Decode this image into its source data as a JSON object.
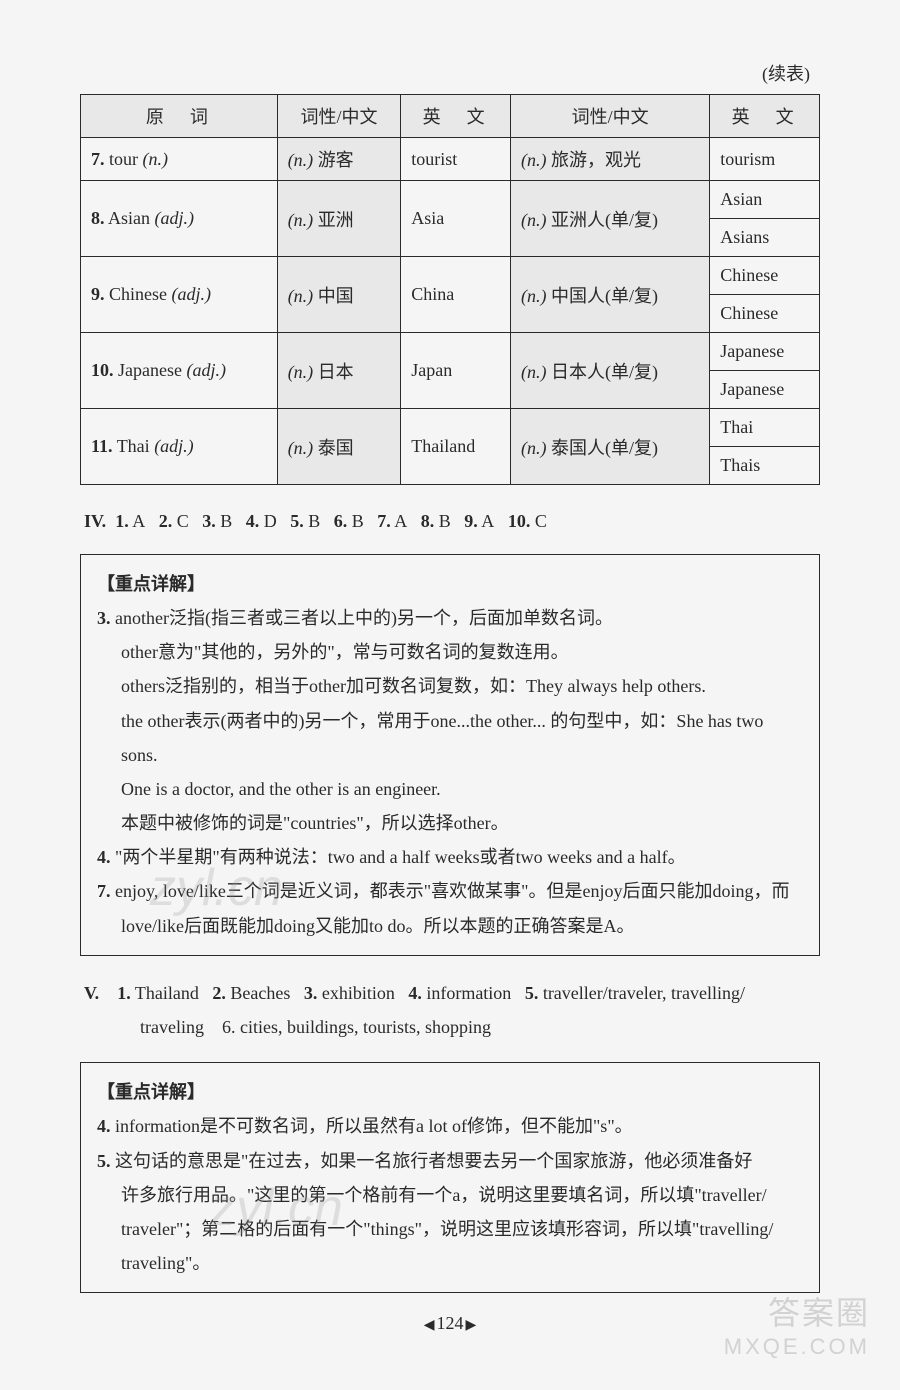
{
  "cont_label": "(续表)",
  "table": {
    "headers": [
      "原　词",
      "词性/中文",
      "英　文",
      "词性/中文",
      "英　文"
    ],
    "rows": [
      {
        "c1_num": "7.",
        "c1_word": "tour",
        "c1_pos": "(n.)",
        "c2": "(n.) 游客",
        "c3": "tourist",
        "c4": "(n.) 旅游，观光",
        "c5": [
          "tourism"
        ]
      },
      {
        "c1_num": "8.",
        "c1_word": "Asian",
        "c1_pos": "(adj.)",
        "c2": "(n.) 亚洲",
        "c3": "Asia",
        "c4": "(n.) 亚洲人(单/复)",
        "c5": [
          "Asian",
          "Asians"
        ]
      },
      {
        "c1_num": "9.",
        "c1_word": "Chinese",
        "c1_pos": "(adj.)",
        "c2": "(n.) 中国",
        "c3": "China",
        "c4": "(n.) 中国人(单/复)",
        "c5": [
          "Chinese",
          "Chinese"
        ]
      },
      {
        "c1_num": "10.",
        "c1_word": "Japanese",
        "c1_pos": "(adj.)",
        "c2": "(n.) 日本",
        "c3": "Japan",
        "c4": "(n.) 日本人(单/复)",
        "c5": [
          "Japanese",
          "Japanese"
        ]
      },
      {
        "c1_num": "11.",
        "c1_word": "Thai",
        "c1_pos": "(adj.)",
        "c2": "(n.) 泰国",
        "c3": "Thailand",
        "c4": "(n.) 泰国人(单/复)",
        "c5": [
          "Thai",
          "Thais"
        ]
      }
    ]
  },
  "section_iv": {
    "label": "IV.",
    "answers": [
      {
        "n": "1.",
        "a": "A"
      },
      {
        "n": "2.",
        "a": "C"
      },
      {
        "n": "3.",
        "a": "B"
      },
      {
        "n": "4.",
        "a": "D"
      },
      {
        "n": "5.",
        "a": "B"
      },
      {
        "n": "6.",
        "a": "B"
      },
      {
        "n": "7.",
        "a": "A"
      },
      {
        "n": "8.",
        "a": "B"
      },
      {
        "n": "9.",
        "a": "A"
      },
      {
        "n": "10.",
        "a": "C"
      }
    ]
  },
  "explain1": {
    "title": "【重点详解】",
    "items": {
      "n3": "3.",
      "l3a": "another泛指(指三者或三者以上中的)另一个，后面加单数名词。",
      "l3b": "other意为\"其他的，另外的\"，常与可数名词的复数连用。",
      "l3c": "others泛指别的，相当于other加可数名词复数，如：They always help others.",
      "l3d": "the other表示(两者中的)另一个，常用于one...the other... 的句型中，如：She has two sons.",
      "l3e": "One is a doctor, and the other is an engineer.",
      "l3f": "本题中被修饰的词是\"countries\"，所以选择other。",
      "n4": "4.",
      "l4": "\"两个半星期\"有两种说法：two and a half weeks或者two weeks and a half。",
      "n7": "7.",
      "l7a": "enjoy, love/like三个词是近义词，都表示\"喜欢做某事\"。但是enjoy后面只能加doing，而",
      "l7b": "love/like后面既能加doing又能加to do。所以本题的正确答案是A。"
    }
  },
  "section_v": {
    "label": "V.",
    "line1_parts": {
      "n1": "1.",
      "a1": "Thailand",
      "n2": "2.",
      "a2": "Beaches",
      "n3": "3.",
      "a3": "exhibition",
      "n4": "4.",
      "a4": "information",
      "n5": "5.",
      "a5": "traveller/traveler, travelling/"
    },
    "line2": "traveling　6. cities, buildings, tourists, shopping"
  },
  "explain2": {
    "title": "【重点详解】",
    "items": {
      "n4": "4.",
      "l4": "information是不可数名词，所以虽然有a lot of修饰，但不能加\"s\"。",
      "n5": "5.",
      "l5a": "这句话的意思是\"在过去，如果一名旅行者想要去另一个国家旅游，他必须准备好",
      "l5b": "许多旅行用品。\"这里的第一个格前有一个a，说明这里要填名词，所以填\"traveller/",
      "l5c": "traveler\"；第二格的后面有一个\"things\"，说明这里应该填形容词，所以填\"travelling/",
      "l5d": "traveling\"。"
    }
  },
  "page_number": "124",
  "watermarks": {
    "w1": "zyl.cn",
    "w2": "zyl.cn"
  },
  "stamp": {
    "line1": "答案圈",
    "line2": "MXQE.COM"
  },
  "colors": {
    "text": "#2a2a2a",
    "bg": "#f5f5f5",
    "header_bg": "#e8e8e8",
    "border": "#2a2a2a"
  }
}
